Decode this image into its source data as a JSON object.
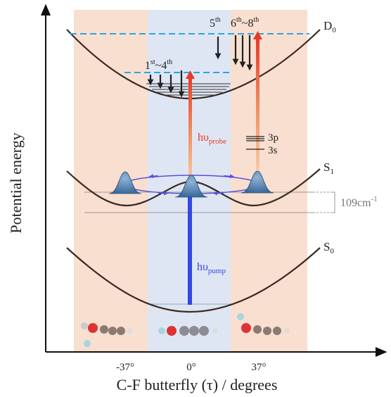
{
  "axes": {
    "y_label": "Potential energy",
    "x_label": "C-F butterfly (τ) / degrees",
    "x_ticks": [
      "-37°",
      "0°",
      "37°"
    ]
  },
  "states": {
    "d0": {
      "main": "D",
      "sub": "0"
    },
    "s1": {
      "main": "S",
      "sub": "1"
    },
    "s0": {
      "main": "S",
      "sub": "0"
    }
  },
  "splitting": {
    "main": "109cm",
    "sup": "-1"
  },
  "probe": {
    "main": "hυ",
    "sub": "probe"
  },
  "pump": {
    "main": "hυ",
    "sub": "pump"
  },
  "rydberg": [
    "3p",
    "3s"
  ],
  "transitions": {
    "first": {
      "a": "1",
      "a_sup": "st",
      "sep": "~4",
      "b_sup": "th"
    },
    "fifth": {
      "a": "5",
      "a_sup": "th"
    },
    "sixth": {
      "a": "6",
      "a_sup": "th",
      "sep": "~8",
      "b_sup": "th"
    }
  }
}
